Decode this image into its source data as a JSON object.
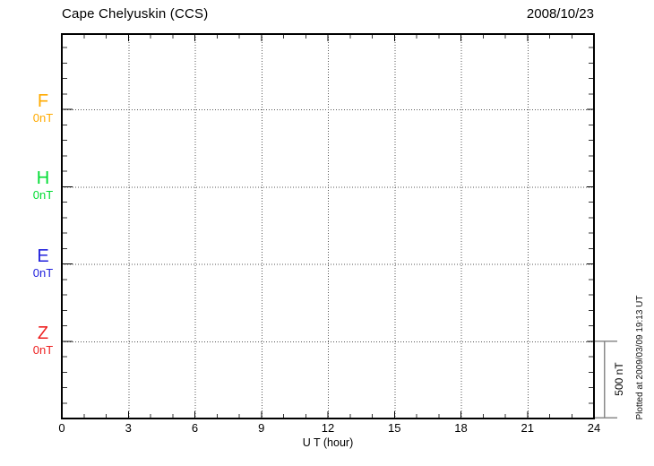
{
  "chart_data": {
    "type": "line",
    "title": "Cape Chelyuskin (CCS)",
    "date_label": "2008/10/23",
    "xlabel": "U T (hour)",
    "xlim": [
      0,
      24
    ],
    "x_major_ticks": [
      0,
      3,
      6,
      9,
      12,
      15,
      18,
      21,
      24
    ],
    "x_minor_tick_step_hours": 1,
    "x_gridlines_hours": [
      3,
      6,
      9,
      12,
      15,
      18,
      21
    ],
    "grid_style": "dotted",
    "y_axis": {
      "minor_ticks_per_division": 5,
      "division_nT": 500
    },
    "scale_bar": {
      "label": "500 nT",
      "value_nT": 500
    },
    "channels": [
      {
        "name": "F",
        "baseline_label": "0nT",
        "baseline_nT": 0,
        "color": "#FFAA00",
        "series": []
      },
      {
        "name": "H",
        "baseline_label": "0nT",
        "baseline_nT": 0,
        "color": "#00DD33",
        "series": []
      },
      {
        "name": "E",
        "baseline_label": "0nT",
        "baseline_nT": 0,
        "color": "#2222DD",
        "series": []
      },
      {
        "name": "Z",
        "baseline_label": "0nT",
        "baseline_nT": 0,
        "color": "#EE2222",
        "series": []
      }
    ],
    "series_note": "No data traces plotted; empty magnetogram grid.",
    "footer_note": "Plotted at 2009/03/09 19:13 UT"
  }
}
